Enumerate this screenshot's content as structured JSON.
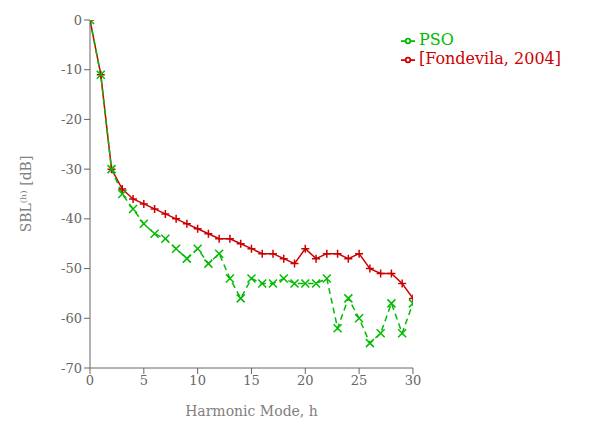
{
  "chart_data": {
    "type": "line",
    "x": [
      0,
      1,
      2,
      3,
      4,
      5,
      6,
      7,
      8,
      9,
      10,
      11,
      12,
      13,
      14,
      15,
      16,
      17,
      18,
      19,
      20,
      21,
      22,
      23,
      24,
      25,
      26,
      27,
      28,
      29,
      30
    ],
    "series": [
      {
        "name": "[Fondevila, 2004]",
        "color": "#cc0000",
        "marker": "plus",
        "line_style": "solid",
        "values": [
          0,
          -11,
          -30,
          -34,
          -36,
          -37,
          -38,
          -39,
          -40,
          -41,
          -42,
          -43,
          -44,
          -44,
          -45,
          -46,
          -47,
          -47,
          -48,
          -49,
          -46,
          -48,
          -47,
          -47,
          -48,
          -47,
          -50,
          -51,
          -51,
          -53,
          -56
        ]
      },
      {
        "name": "PSO",
        "color": "#00bb00",
        "marker": "cross",
        "line_style": "dashed",
        "values": [
          0,
          -11,
          -30,
          -35,
          -38,
          -41,
          -43,
          -44,
          -46,
          -48,
          -46,
          -49,
          -47,
          -52,
          -56,
          -52,
          -53,
          -53,
          -52,
          -53,
          -53,
          -53,
          -52,
          -62,
          -56,
          -60,
          -65,
          -63,
          -57,
          -63,
          -57
        ]
      }
    ],
    "x_label": "Harmonic Mode, h",
    "y_label": "SBL⁽ʰ⁾ [dB]",
    "xlim": [
      0,
      30
    ],
    "ylim": [
      -70,
      0
    ],
    "xticks": [
      0,
      5,
      10,
      15,
      20,
      25,
      30
    ],
    "yticks": [
      0,
      -10,
      -20,
      -30,
      -40,
      -50,
      -60,
      -70
    ],
    "legend": "upper right",
    "grid": false
  }
}
